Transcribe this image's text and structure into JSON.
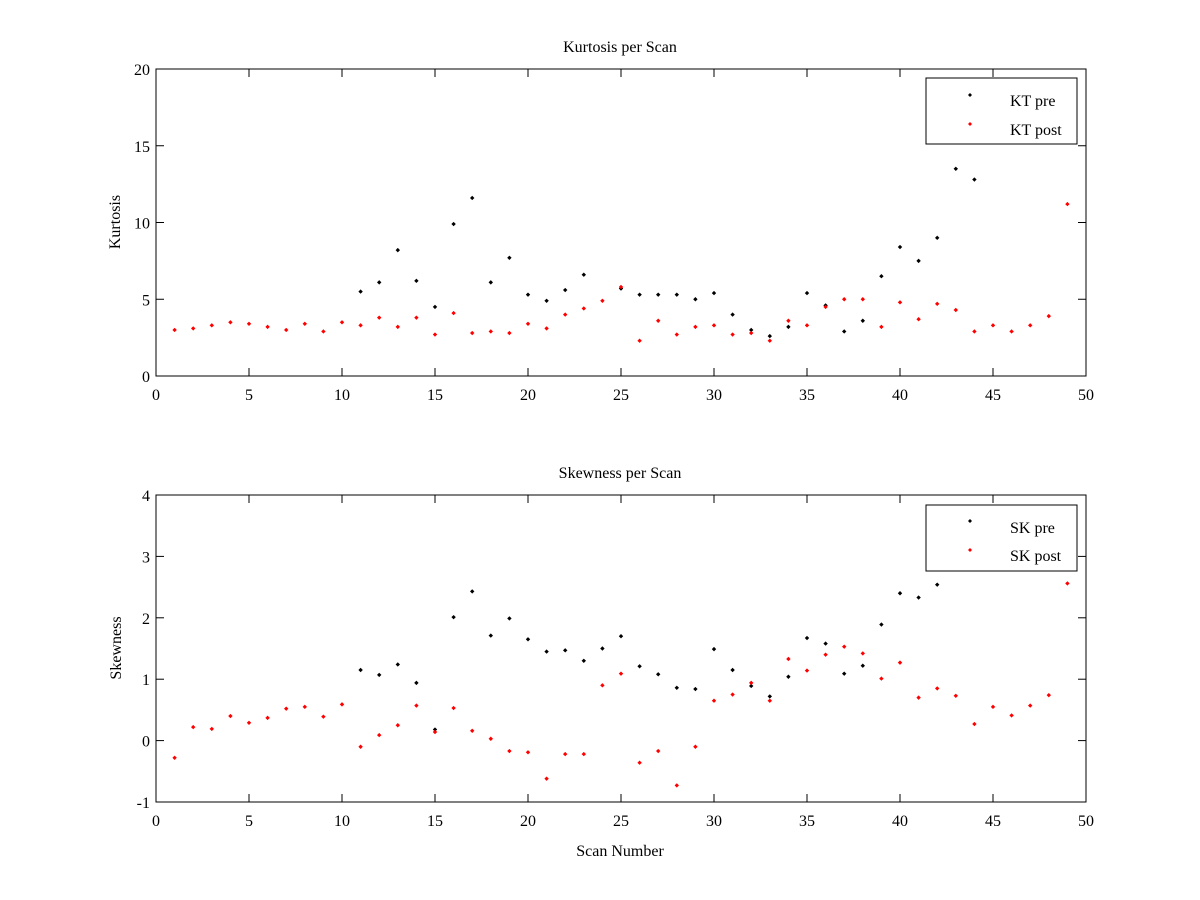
{
  "chart_data": [
    {
      "type": "scatter",
      "title": "Kurtosis per Scan",
      "xlabel": "",
      "ylabel": "Kurtosis",
      "xlim": [
        0,
        50
      ],
      "ylim": [
        0,
        20
      ],
      "xticks": [
        0,
        5,
        10,
        15,
        20,
        25,
        30,
        35,
        40,
        45,
        50
      ],
      "yticks": [
        0,
        5,
        10,
        15,
        20
      ],
      "grid": false,
      "legend_position": "top-right",
      "series": [
        {
          "name": "KT pre",
          "color": "#000000",
          "x": [
            11,
            12,
            13,
            14,
            15,
            16,
            17,
            18,
            19,
            20,
            21,
            22,
            23,
            25,
            26,
            27,
            28,
            29,
            30,
            31,
            32,
            33,
            34,
            35,
            36,
            37,
            38,
            39,
            40,
            41,
            42,
            43,
            44
          ],
          "y": [
            5.5,
            6.1,
            8.2,
            6.2,
            4.5,
            9.9,
            11.6,
            6.1,
            7.7,
            5.3,
            4.9,
            5.6,
            6.6,
            5.7,
            5.3,
            5.3,
            5.3,
            5.0,
            5.4,
            4.0,
            3.0,
            2.6,
            3.2,
            5.4,
            4.6,
            2.9,
            3.6,
            6.5,
            8.4,
            7.5,
            9.0,
            13.5,
            12.8
          ]
        },
        {
          "name": "KT post",
          "color": "#ff0000",
          "x": [
            1,
            2,
            3,
            4,
            5,
            6,
            7,
            8,
            9,
            10,
            11,
            12,
            13,
            14,
            15,
            16,
            17,
            18,
            19,
            20,
            21,
            22,
            23,
            24,
            25,
            26,
            27,
            28,
            29,
            30,
            31,
            32,
            33,
            34,
            35,
            36,
            37,
            38,
            39,
            40,
            41,
            42,
            43,
            44,
            45,
            46,
            47,
            48,
            49
          ],
          "y": [
            3.0,
            3.1,
            3.3,
            3.5,
            3.4,
            3.2,
            3.0,
            3.4,
            2.9,
            3.5,
            3.3,
            3.8,
            3.2,
            3.8,
            2.7,
            4.1,
            2.8,
            2.9,
            2.8,
            3.4,
            3.1,
            4.0,
            4.4,
            4.9,
            5.8,
            2.3,
            3.6,
            2.7,
            3.2,
            3.3,
            2.7,
            2.8,
            2.3,
            3.6,
            3.3,
            4.5,
            5.0,
            5.0,
            3.2,
            4.8,
            3.7,
            4.7,
            4.3,
            2.9,
            3.3,
            2.9,
            3.3,
            3.9,
            11.2
          ]
        }
      ]
    },
    {
      "type": "scatter",
      "title": "Skewness per Scan",
      "xlabel": "Scan Number",
      "ylabel": "Skewness",
      "xlim": [
        0,
        50
      ],
      "ylim": [
        -1,
        4
      ],
      "xticks": [
        0,
        5,
        10,
        15,
        20,
        25,
        30,
        35,
        40,
        45,
        50
      ],
      "yticks": [
        -1,
        0,
        1,
        2,
        3,
        4
      ],
      "grid": false,
      "legend_position": "top-right",
      "series": [
        {
          "name": "SK pre",
          "color": "#000000",
          "x": [
            11,
            12,
            13,
            14,
            15,
            16,
            17,
            18,
            19,
            20,
            21,
            22,
            23,
            24,
            25,
            26,
            27,
            28,
            29,
            30,
            31,
            32,
            33,
            34,
            35,
            36,
            37,
            38,
            39,
            40,
            41,
            42
          ],
          "y": [
            1.15,
            1.07,
            1.24,
            0.94,
            0.18,
            2.01,
            2.43,
            1.71,
            1.99,
            1.65,
            1.45,
            1.47,
            1.3,
            1.5,
            1.7,
            1.21,
            1.08,
            0.86,
            0.84,
            1.49,
            1.15,
            0.89,
            0.72,
            1.04,
            1.67,
            1.58,
            1.09,
            1.22,
            1.89,
            2.4,
            2.33,
            2.54
          ]
        },
        {
          "name": "SK post",
          "color": "#ff0000",
          "x": [
            1,
            2,
            3,
            4,
            5,
            6,
            7,
            8,
            9,
            10,
            11,
            12,
            13,
            14,
            15,
            16,
            17,
            18,
            19,
            20,
            21,
            22,
            23,
            24,
            25,
            26,
            27,
            28,
            29,
            30,
            31,
            32,
            33,
            34,
            35,
            36,
            37,
            38,
            39,
            40,
            41,
            42,
            43,
            44,
            45,
            46,
            47,
            48,
            49
          ],
          "y": [
            -0.28,
            0.22,
            0.19,
            0.4,
            0.29,
            0.37,
            0.52,
            0.55,
            0.39,
            0.59,
            -0.1,
            0.09,
            0.25,
            0.57,
            0.14,
            0.53,
            0.16,
            0.03,
            -0.17,
            -0.19,
            -0.62,
            -0.22,
            -0.22,
            0.9,
            1.09,
            -0.36,
            -0.17,
            -0.73,
            -0.1,
            0.65,
            0.75,
            0.94,
            0.65,
            1.33,
            1.14,
            1.4,
            1.53,
            1.42,
            1.01,
            1.27,
            0.7,
            0.85,
            0.73,
            0.27,
            0.55,
            0.41,
            0.57,
            0.74,
            2.56
          ]
        }
      ]
    }
  ]
}
